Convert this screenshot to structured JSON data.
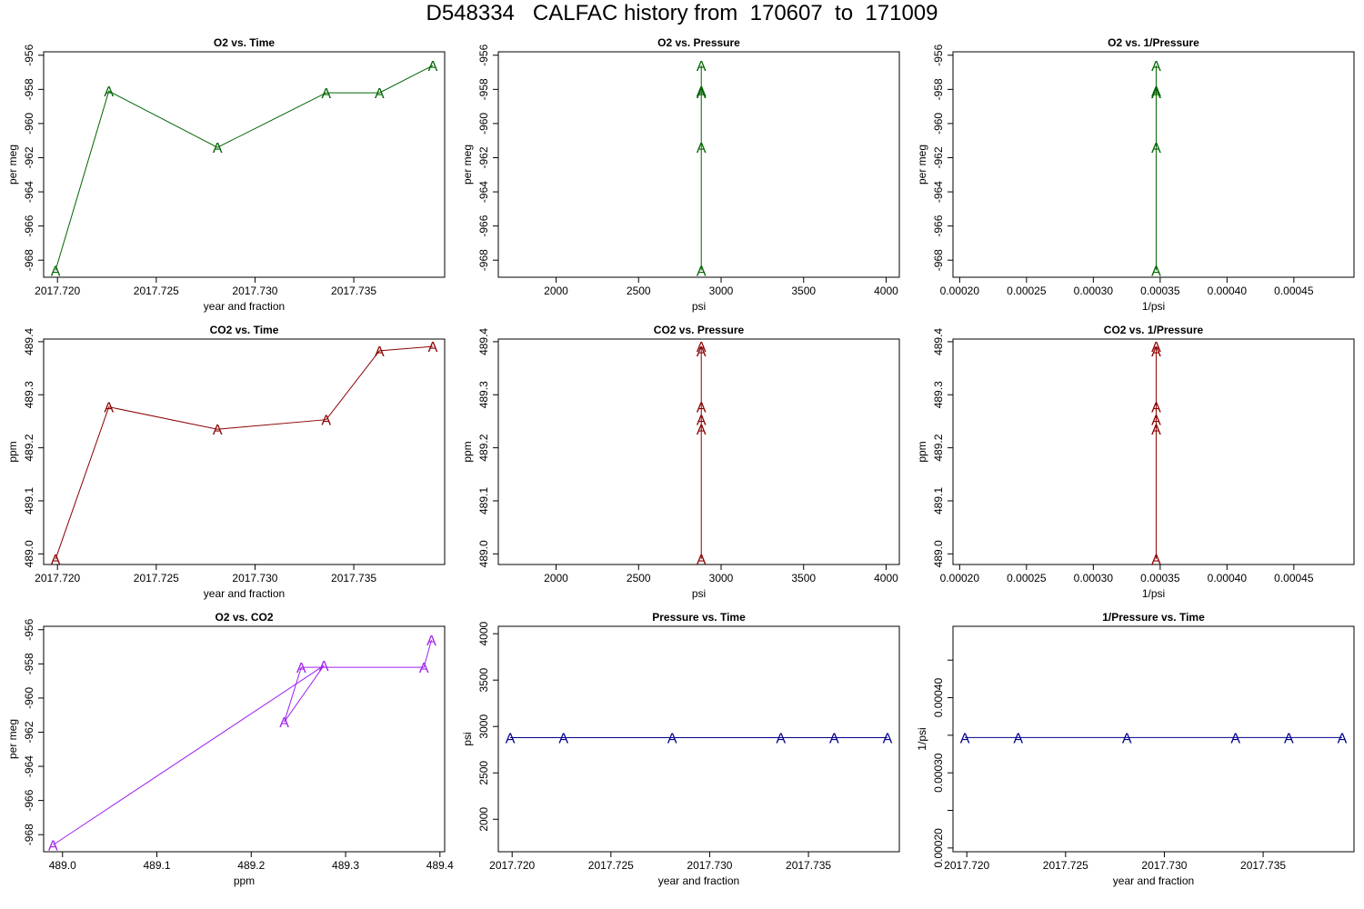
{
  "page": {
    "title": "D548334   CALFAC history from  170607  to  171009"
  },
  "chart_data": [
    {
      "id": "o2-vs-time",
      "type": "line",
      "title": "O2 vs. Time",
      "xlabel": "year and fraction",
      "ylabel": "per meg",
      "color": "#006400",
      "marker": "A",
      "xlim": [
        2017.7193,
        2017.7396
      ],
      "ylim": [
        -969.0,
        -955.8
      ],
      "xticks": [
        {
          "v": 2017.72,
          "label": "2017.720"
        },
        {
          "v": 2017.725,
          "label": "2017.725"
        },
        {
          "v": 2017.73,
          "label": "2017.730"
        },
        {
          "v": 2017.735,
          "label": "2017.735"
        }
      ],
      "yticks": [
        {
          "v": -968,
          "label": "-968"
        },
        {
          "v": -966,
          "label": "-966"
        },
        {
          "v": -964,
          "label": "-964"
        },
        {
          "v": -962,
          "label": "-962"
        },
        {
          "v": -960,
          "label": "-960"
        },
        {
          "v": -958,
          "label": "-958"
        },
        {
          "v": -956,
          "label": "-956"
        }
      ],
      "x": [
        2017.7199,
        2017.7226,
        2017.7281,
        2017.7336,
        2017.7363,
        2017.739
      ],
      "y": [
        -968.6,
        -958.1,
        -961.4,
        -958.2,
        -958.2,
        -956.6
      ]
    },
    {
      "id": "o2-vs-pressure",
      "type": "line",
      "title": "O2 vs. Pressure",
      "xlabel": "psi",
      "ylabel": "per meg",
      "color": "#006400",
      "marker": "A",
      "xlim": [
        1650,
        4080
      ],
      "ylim": [
        -969.0,
        -955.8
      ],
      "xticks": [
        {
          "v": 2000,
          "label": "2000"
        },
        {
          "v": 2500,
          "label": "2500"
        },
        {
          "v": 3000,
          "label": "3000"
        },
        {
          "v": 3500,
          "label": "3500"
        },
        {
          "v": 4000,
          "label": "4000"
        }
      ],
      "yticks": [
        {
          "v": -968,
          "label": "-968"
        },
        {
          "v": -966,
          "label": "-966"
        },
        {
          "v": -964,
          "label": "-964"
        },
        {
          "v": -962,
          "label": "-962"
        },
        {
          "v": -960,
          "label": "-960"
        },
        {
          "v": -958,
          "label": "-958"
        },
        {
          "v": -956,
          "label": "-956"
        }
      ],
      "x": [
        2880,
        2880,
        2880,
        2880,
        2880,
        2880
      ],
      "y": [
        -968.6,
        -958.1,
        -961.4,
        -958.2,
        -958.2,
        -956.6
      ]
    },
    {
      "id": "o2-vs-inv-pressure",
      "type": "line",
      "title": "O2 vs. 1/Pressure",
      "xlabel": "1/psi",
      "ylabel": "per meg",
      "color": "#006400",
      "marker": "A",
      "xlim": [
        0.000195,
        0.000495
      ],
      "ylim": [
        -969.0,
        -955.8
      ],
      "xticks": [
        {
          "v": 0.0002,
          "label": "0.00020"
        },
        {
          "v": 0.00025,
          "label": "0.00025"
        },
        {
          "v": 0.0003,
          "label": "0.00030"
        },
        {
          "v": 0.00035,
          "label": "0.00035"
        },
        {
          "v": 0.0004,
          "label": "0.00040"
        },
        {
          "v": 0.00045,
          "label": "0.00045"
        }
      ],
      "yticks": [
        {
          "v": -968,
          "label": "-968"
        },
        {
          "v": -966,
          "label": "-966"
        },
        {
          "v": -964,
          "label": "-964"
        },
        {
          "v": -962,
          "label": "-962"
        },
        {
          "v": -960,
          "label": "-960"
        },
        {
          "v": -958,
          "label": "-958"
        },
        {
          "v": -956,
          "label": "-956"
        }
      ],
      "x": [
        0.000347,
        0.000347,
        0.000347,
        0.000347,
        0.000347,
        0.000347
      ],
      "y": [
        -968.6,
        -958.1,
        -961.4,
        -958.2,
        -958.2,
        -956.6
      ]
    },
    {
      "id": "co2-vs-time",
      "type": "line",
      "title": "CO2 vs. Time",
      "xlabel": "year and fraction",
      "ylabel": "ppm",
      "color": "#8b0000",
      "marker": "A",
      "xlim": [
        2017.7193,
        2017.7396
      ],
      "ylim": [
        488.98,
        489.405
      ],
      "xticks": [
        {
          "v": 2017.72,
          "label": "2017.720"
        },
        {
          "v": 2017.725,
          "label": "2017.725"
        },
        {
          "v": 2017.73,
          "label": "2017.730"
        },
        {
          "v": 2017.735,
          "label": "2017.735"
        }
      ],
      "yticks": [
        {
          "v": 489.0,
          "label": "489.0"
        },
        {
          "v": 489.1,
          "label": "489.1"
        },
        {
          "v": 489.2,
          "label": "489.2"
        },
        {
          "v": 489.3,
          "label": "489.3"
        },
        {
          "v": 489.4,
          "label": "489.4"
        }
      ],
      "x": [
        2017.7199,
        2017.7226,
        2017.7281,
        2017.7336,
        2017.7363,
        2017.739
      ],
      "y": [
        488.99,
        489.277,
        489.235,
        489.253,
        489.383,
        489.391
      ]
    },
    {
      "id": "co2-vs-pressure",
      "type": "line",
      "title": "CO2 vs. Pressure",
      "xlabel": "psi",
      "ylabel": "ppm",
      "color": "#8b0000",
      "marker": "A",
      "xlim": [
        1650,
        4080
      ],
      "ylim": [
        488.98,
        489.405
      ],
      "xticks": [
        {
          "v": 2000,
          "label": "2000"
        },
        {
          "v": 2500,
          "label": "2500"
        },
        {
          "v": 3000,
          "label": "3000"
        },
        {
          "v": 3500,
          "label": "3500"
        },
        {
          "v": 4000,
          "label": "4000"
        }
      ],
      "yticks": [
        {
          "v": 489.0,
          "label": "489.0"
        },
        {
          "v": 489.1,
          "label": "489.1"
        },
        {
          "v": 489.2,
          "label": "489.2"
        },
        {
          "v": 489.3,
          "label": "489.3"
        },
        {
          "v": 489.4,
          "label": "489.4"
        }
      ],
      "x": [
        2880,
        2880,
        2880,
        2880,
        2880,
        2880
      ],
      "y": [
        488.99,
        489.277,
        489.235,
        489.253,
        489.383,
        489.391
      ]
    },
    {
      "id": "co2-vs-inv-pressure",
      "type": "line",
      "title": "CO2 vs. 1/Pressure",
      "xlabel": "1/psi",
      "ylabel": "ppm",
      "color": "#8b0000",
      "marker": "A",
      "xlim": [
        0.000195,
        0.000495
      ],
      "ylim": [
        488.98,
        489.405
      ],
      "xticks": [
        {
          "v": 0.0002,
          "label": "0.00020"
        },
        {
          "v": 0.00025,
          "label": "0.00025"
        },
        {
          "v": 0.0003,
          "label": "0.00030"
        },
        {
          "v": 0.00035,
          "label": "0.00035"
        },
        {
          "v": 0.0004,
          "label": "0.00040"
        },
        {
          "v": 0.00045,
          "label": "0.00045"
        }
      ],
      "yticks": [
        {
          "v": 489.0,
          "label": "489.0"
        },
        {
          "v": 489.1,
          "label": "489.1"
        },
        {
          "v": 489.2,
          "label": "489.2"
        },
        {
          "v": 489.3,
          "label": "489.3"
        },
        {
          "v": 489.4,
          "label": "489.4"
        }
      ],
      "x": [
        0.000347,
        0.000347,
        0.000347,
        0.000347,
        0.000347,
        0.000347
      ],
      "y": [
        488.99,
        489.277,
        489.235,
        489.253,
        489.383,
        489.391
      ]
    },
    {
      "id": "o2-vs-co2",
      "type": "line",
      "title": "O2 vs. CO2",
      "xlabel": "ppm",
      "ylabel": "per meg",
      "color": "#a020f0",
      "marker": "A",
      "xlim": [
        488.98,
        489.405
      ],
      "ylim": [
        -969.0,
        -955.8
      ],
      "xticks": [
        {
          "v": 489.0,
          "label": "489.0"
        },
        {
          "v": 489.1,
          "label": "489.1"
        },
        {
          "v": 489.2,
          "label": "489.2"
        },
        {
          "v": 489.3,
          "label": "489.3"
        },
        {
          "v": 489.4,
          "label": "489.4"
        }
      ],
      "yticks": [
        {
          "v": -968,
          "label": "-968"
        },
        {
          "v": -966,
          "label": "-966"
        },
        {
          "v": -964,
          "label": "-964"
        },
        {
          "v": -962,
          "label": "-962"
        },
        {
          "v": -960,
          "label": "-960"
        },
        {
          "v": -958,
          "label": "-958"
        },
        {
          "v": -956,
          "label": "-956"
        }
      ],
      "x": [
        488.99,
        489.277,
        489.235,
        489.253,
        489.383,
        489.391
      ],
      "y": [
        -968.6,
        -958.1,
        -961.4,
        -958.2,
        -958.2,
        -956.6
      ]
    },
    {
      "id": "pressure-vs-time",
      "type": "line",
      "title": "Pressure vs. Time",
      "xlabel": "year and fraction",
      "ylabel": "psi",
      "color": "#00008b",
      "marker": "A",
      "xlim": [
        2017.7193,
        2017.7396
      ],
      "ylim": [
        1650,
        4080
      ],
      "xticks": [
        {
          "v": 2017.72,
          "label": "2017.720"
        },
        {
          "v": 2017.725,
          "label": "2017.725"
        },
        {
          "v": 2017.73,
          "label": "2017.730"
        },
        {
          "v": 2017.735,
          "label": "2017.735"
        }
      ],
      "yticks": [
        {
          "v": 2000,
          "label": "2000"
        },
        {
          "v": 2500,
          "label": "2500"
        },
        {
          "v": 3000,
          "label": "3000"
        },
        {
          "v": 3500,
          "label": "3500"
        },
        {
          "v": 4000,
          "label": "4000"
        }
      ],
      "x": [
        2017.7199,
        2017.7226,
        2017.7281,
        2017.7336,
        2017.7363,
        2017.739
      ],
      "y": [
        2880,
        2880,
        2880,
        2880,
        2880,
        2880
      ]
    },
    {
      "id": "inv-pressure-vs-time",
      "type": "line",
      "title": "1/Pressure vs. Time",
      "xlabel": "year and fraction",
      "ylabel": "1/psi",
      "color": "#00008b",
      "marker": "A",
      "xlim": [
        2017.7193,
        2017.7396
      ],
      "ylim": [
        0.000195,
        0.000495
      ],
      "xticks": [
        {
          "v": 2017.72,
          "label": "2017.720"
        },
        {
          "v": 2017.725,
          "label": "2017.725"
        },
        {
          "v": 2017.73,
          "label": "2017.730"
        },
        {
          "v": 2017.735,
          "label": "2017.735"
        }
      ],
      "yticks": [
        {
          "v": 0.0002,
          "label": "0.00020"
        },
        {
          "v": 0.00025,
          "label": ""
        },
        {
          "v": 0.0003,
          "label": "0.00030"
        },
        {
          "v": 0.00035,
          "label": ""
        },
        {
          "v": 0.0004,
          "label": "0.00040"
        },
        {
          "v": 0.00045,
          "label": ""
        }
      ],
      "x": [
        2017.7199,
        2017.7226,
        2017.7281,
        2017.7336,
        2017.7363,
        2017.739
      ],
      "y": [
        0.000347,
        0.000347,
        0.000347,
        0.000347,
        0.000347,
        0.000347
      ]
    }
  ]
}
